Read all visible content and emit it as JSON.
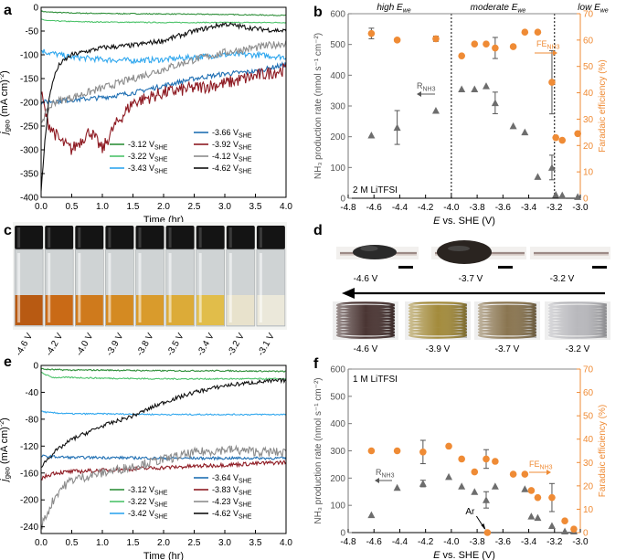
{
  "panel_labels": {
    "a": "a",
    "b": "b",
    "c": "c",
    "d": "d",
    "e": "e",
    "f": "f"
  },
  "colors": {
    "c312": "#2f8f3a",
    "c322": "#4cc36a",
    "c343": "#30a7ee",
    "c366": "#1f6fb3",
    "c392": "#8e1a22",
    "c412": "#8c8c8c",
    "c462": "#111111",
    "rate": "#6d6d6d",
    "fe": "#ef8b35"
  },
  "chart_data": [
    {
      "id": "a",
      "type": "line",
      "title": "",
      "xlabel": "Time (hr)",
      "ylabel": "j_geo (mA cm^-2)",
      "xlim": [
        0,
        4
      ],
      "ylim": [
        -400,
        0
      ],
      "xticks": [
        "0.0",
        "0.5",
        "1.0",
        "1.5",
        "2.0",
        "2.5",
        "3.0",
        "3.5",
        "4.0"
      ],
      "yticks": [
        "-400",
        "-350",
        "-300",
        "-250",
        "-200",
        "-150",
        "-100",
        "-50",
        "0"
      ],
      "legend": [
        {
          "main": "-3.12 V",
          "sub": "SHE",
          "key": "c312"
        },
        {
          "main": "-3.22 V",
          "sub": "SHE",
          "key": "c322"
        },
        {
          "main": "-3.43 V",
          "sub": "SHE",
          "key": "c343"
        },
        {
          "main": "-3.66 V",
          "sub": "SHE",
          "key": "c366"
        },
        {
          "main": "-3.92 V",
          "sub": "SHE",
          "key": "c392"
        },
        {
          "main": "-4.12 V",
          "sub": "SHE",
          "key": "c412"
        },
        {
          "main": "-4.62 V",
          "sub": "SHE",
          "key": "c462"
        }
      ],
      "series": [
        {
          "name": "-3.12 V",
          "key": "c312",
          "noise": 1,
          "x": [
            0,
            0.1,
            0.5,
            1,
            2,
            3,
            4
          ],
          "y": [
            -8,
            -10,
            -12,
            -13,
            -14,
            -15,
            -17
          ]
        },
        {
          "name": "-3.22 V",
          "key": "c322",
          "noise": 1,
          "x": [
            0,
            0.1,
            0.5,
            1,
            2,
            3,
            4
          ],
          "y": [
            -25,
            -28,
            -30,
            -31,
            -32,
            -32,
            -32
          ]
        },
        {
          "name": "-3.43 V",
          "key": "c343",
          "noise": 6,
          "x": [
            0,
            0.1,
            0.5,
            1,
            1.5,
            2,
            2.5,
            3,
            3.5,
            4
          ],
          "y": [
            -90,
            -95,
            -105,
            -110,
            -112,
            -110,
            -105,
            -100,
            -100,
            -105
          ]
        },
        {
          "name": "-3.66 V",
          "key": "c366",
          "noise": 5,
          "x": [
            0,
            0.5,
            1,
            1.5,
            2,
            2.5,
            3,
            3.5,
            4
          ],
          "y": [
            -200,
            -195,
            -190,
            -180,
            -165,
            -150,
            -140,
            -135,
            -120
          ]
        },
        {
          "name": "-3.92 V",
          "key": "c392",
          "noise": 14,
          "x": [
            0,
            0.1,
            0.3,
            0.5,
            0.8,
            1.0,
            1.2,
            1.5,
            2.0,
            2.5,
            3.0,
            3.5,
            4.0
          ],
          "y": [
            -180,
            -240,
            -280,
            -300,
            -260,
            -300,
            -250,
            -200,
            -180,
            -170,
            -160,
            -145,
            -130
          ]
        },
        {
          "name": "-4.12 V",
          "key": "c412",
          "noise": 8,
          "x": [
            0,
            0.2,
            0.5,
            1,
            1.5,
            2,
            2.5,
            3,
            3.5,
            4
          ],
          "y": [
            -240,
            -200,
            -190,
            -170,
            -150,
            -130,
            -110,
            -95,
            -85,
            -75
          ]
        },
        {
          "name": "-4.62 V",
          "key": "c462",
          "noise": 5,
          "x": [
            0,
            0.05,
            0.12,
            0.2,
            0.3,
            0.5,
            1,
            1.5,
            2,
            2.5,
            3,
            3.5,
            4
          ],
          "y": [
            -390,
            -300,
            -200,
            -150,
            -120,
            -100,
            -85,
            -80,
            -70,
            -50,
            -35,
            -45,
            -50
          ]
        }
      ]
    },
    {
      "id": "b",
      "type": "scatter",
      "xlabel": "E vs. SHE (V)",
      "ylabel": "NH3 production rate (nmol s^-1 cm^-2)",
      "y2label": "Faradaic efficiency (%)",
      "xlim": [
        -4.8,
        -3.0
      ],
      "ylim": [
        0,
        600
      ],
      "y2lim": [
        0,
        70
      ],
      "xticks": [
        "-4.8",
        "-4.6",
        "-4.4",
        "-4.2",
        "-4.0",
        "-3.8",
        "-3.6",
        "-3.4",
        "-3.2",
        "-3.0"
      ],
      "yticks": [
        "0",
        "100",
        "200",
        "300",
        "400",
        "500",
        "600"
      ],
      "y2ticks": [
        "0",
        "10",
        "20",
        "30",
        "40",
        "50",
        "60",
        "70"
      ],
      "vlines": [
        -4.0,
        -3.2
      ],
      "regions": {
        "high": "high ",
        "moderate": "moderate ",
        "low": "low ",
        "E": "E",
        "we": "we"
      },
      "electrolyte": "2 M LiTFSI",
      "rate_label": {
        "R": "R",
        "sub": "NH3"
      },
      "fe_label": {
        "FE": "FE",
        "sub": "NH3"
      },
      "rate": [
        {
          "x": -4.62,
          "y": 205
        },
        {
          "x": -4.42,
          "y": 230,
          "err": 55
        },
        {
          "x": -4.12,
          "y": 285
        },
        {
          "x": -3.92,
          "y": 355
        },
        {
          "x": -3.82,
          "y": 355
        },
        {
          "x": -3.73,
          "y": 365
        },
        {
          "x": -3.66,
          "y": 310,
          "err": 35
        },
        {
          "x": -3.52,
          "y": 235
        },
        {
          "x": -3.43,
          "y": 215
        },
        {
          "x": -3.33,
          "y": 70
        },
        {
          "x": -3.22,
          "y": 100,
          "err": 40
        },
        {
          "x": -3.19,
          "y": 12
        },
        {
          "x": -3.14,
          "y": 10
        },
        {
          "x": -3.02,
          "y": 5
        }
      ],
      "fe": [
        {
          "x": -4.62,
          "y": 62.5,
          "err": 2
        },
        {
          "x": -4.42,
          "y": 60
        },
        {
          "x": -4.12,
          "y": 60.5,
          "err": 1
        },
        {
          "x": -3.92,
          "y": 54
        },
        {
          "x": -3.82,
          "y": 58.5
        },
        {
          "x": -3.73,
          "y": 58.5
        },
        {
          "x": -3.66,
          "y": 57,
          "err": 4
        },
        {
          "x": -3.52,
          "y": 57.5
        },
        {
          "x": -3.43,
          "y": 63
        },
        {
          "x": -3.33,
          "y": 63
        },
        {
          "x": -3.22,
          "y": 44,
          "err": 12
        },
        {
          "x": -3.19,
          "y": 23
        },
        {
          "x": -3.14,
          "y": 22
        },
        {
          "x": -3.02,
          "y": 24.5
        }
      ]
    },
    {
      "id": "e",
      "type": "line",
      "xlabel": "Time (hr)",
      "ylabel": "j_geo (mA cm^-2)",
      "xlim": [
        0,
        4
      ],
      "ylim": [
        -250,
        0
      ],
      "xticks": [
        "0.0",
        "0.5",
        "1.0",
        "1.5",
        "2.0",
        "2.5",
        "3.0",
        "3.5",
        "4.0"
      ],
      "yticks": [
        "-240",
        "-200",
        "-160",
        "-120",
        "-80",
        "-40",
        "0"
      ],
      "legend": [
        {
          "main": "-3.12 V",
          "sub": "SHE",
          "key": "c312"
        },
        {
          "main": "-3.22 V",
          "sub": "SHE",
          "key": "c322"
        },
        {
          "main": "-3.42 V",
          "sub": "SHE",
          "key": "c343"
        },
        {
          "main": "-3.64 V",
          "sub": "SHE",
          "key": "c366"
        },
        {
          "main": "-3.83 V",
          "sub": "SHE",
          "key": "c392"
        },
        {
          "main": "-4.23 V",
          "sub": "SHE",
          "key": "c412"
        },
        {
          "main": "-4.62 V",
          "sub": "SHE",
          "key": "c462"
        }
      ],
      "series": [
        {
          "name": "-3.12 V",
          "key": "c312",
          "noise": 1,
          "x": [
            0,
            0.1,
            0.5,
            1,
            2,
            3,
            4
          ],
          "y": [
            -5,
            -6,
            -7,
            -7,
            -8,
            -8,
            -9
          ]
        },
        {
          "name": "-3.22 V",
          "key": "c322",
          "noise": 1,
          "x": [
            0,
            0.1,
            0.2,
            0.5,
            1,
            2,
            3,
            4
          ],
          "y": [
            -10,
            -15,
            -18,
            -18,
            -19,
            -20,
            -20,
            -20
          ]
        },
        {
          "name": "-3.42 V",
          "key": "c343",
          "noise": 1,
          "x": [
            0,
            0.1,
            0.5,
            1,
            2,
            3,
            4
          ],
          "y": [
            -68,
            -70,
            -72,
            -72,
            -73,
            -73,
            -73
          ]
        },
        {
          "name": "-3.64 V",
          "key": "c366",
          "noise": 2,
          "x": [
            0,
            0.5,
            1,
            2,
            3,
            4
          ],
          "y": [
            -135,
            -137,
            -137,
            -138,
            -138,
            -138
          ]
        },
        {
          "name": "-3.83 V",
          "key": "c392",
          "noise": 3,
          "x": [
            0,
            0.2,
            0.5,
            1,
            2,
            3,
            4
          ],
          "y": [
            -168,
            -160,
            -158,
            -156,
            -152,
            -148,
            -144
          ]
        },
        {
          "name": "-4.23 V",
          "key": "c412",
          "noise": 7,
          "x": [
            0,
            0.1,
            0.2,
            0.3,
            0.5,
            1,
            1.5,
            2,
            2.5,
            3,
            3.5,
            4
          ],
          "y": [
            -240,
            -220,
            -200,
            -185,
            -170,
            -160,
            -150,
            -140,
            -130,
            -125,
            -128,
            -130
          ]
        },
        {
          "name": "-4.62 V",
          "key": "c462",
          "noise": 3,
          "x": [
            0,
            0.2,
            0.5,
            1,
            1.5,
            2,
            2.5,
            3,
            3.5,
            4
          ],
          "y": [
            -150,
            -130,
            -110,
            -90,
            -75,
            -55,
            -40,
            -30,
            -25,
            -22
          ]
        }
      ]
    },
    {
      "id": "f",
      "type": "scatter",
      "xlabel": "E vs. SHE (V)",
      "ylabel": "NH3 production rate (nmol s^-1 cm^-2)",
      "y2label": "Faradaic efficiency (%)",
      "xlim": [
        -4.8,
        -3.0
      ],
      "ylim": [
        0,
        600
      ],
      "y2lim": [
        0,
        70
      ],
      "xticks": [
        "-4.8",
        "-4.6",
        "-4.4",
        "-4.2",
        "-4.0",
        "-3.8",
        "-3.6",
        "-3.4",
        "-3.2",
        "-3.0"
      ],
      "yticks": [
        "0",
        "100",
        "200",
        "300",
        "400",
        "500",
        "600"
      ],
      "y2ticks": [
        "0",
        "10",
        "20",
        "30",
        "40",
        "50",
        "60",
        "70"
      ],
      "electrolyte": "1 M LiTFSI",
      "rate_label": {
        "R": "R",
        "sub": "NH3"
      },
      "fe_label": {
        "FE": "FE",
        "sub": "NH3"
      },
      "ar_label": "Ar",
      "rate": [
        {
          "x": -4.62,
          "y": 65
        },
        {
          "x": -4.42,
          "y": 165
        },
        {
          "x": -4.22,
          "y": 180,
          "err": 12
        },
        {
          "x": -4.02,
          "y": 205
        },
        {
          "x": -3.92,
          "y": 170
        },
        {
          "x": -3.82,
          "y": 150
        },
        {
          "x": -3.73,
          "y": 120,
          "err": 30
        },
        {
          "x": -3.66,
          "y": 170
        },
        {
          "x": -3.43,
          "y": 160
        },
        {
          "x": -3.38,
          "y": 60
        },
        {
          "x": -3.33,
          "y": 55
        },
        {
          "x": -3.22,
          "y": 25
        },
        {
          "x": -3.12,
          "y": 5
        },
        {
          "x": -3.05,
          "y": 5
        }
      ],
      "fe": [
        {
          "x": -4.62,
          "y": 35
        },
        {
          "x": -4.42,
          "y": 35
        },
        {
          "x": -4.22,
          "y": 34.5,
          "err": 5
        },
        {
          "x": -4.02,
          "y": 37
        },
        {
          "x": -3.92,
          "y": 31.5
        },
        {
          "x": -3.82,
          "y": 26
        },
        {
          "x": -3.73,
          "y": 31.5,
          "err": 4
        },
        {
          "x": -3.66,
          "y": 30.5
        },
        {
          "x": -3.52,
          "y": 25
        },
        {
          "x": -3.43,
          "y": 25
        },
        {
          "x": -3.38,
          "y": 18
        },
        {
          "x": -3.33,
          "y": 15
        },
        {
          "x": -3.22,
          "y": 15,
          "err": 6
        },
        {
          "x": -3.12,
          "y": 5
        },
        {
          "x": -3.05,
          "y": 1.5
        }
      ],
      "ar_point": {
        "x": -3.72,
        "y": 0
      }
    }
  ],
  "panel_c": {
    "vial_labels": [
      "-4.6 V",
      "-4.2 V",
      "-4.0 V",
      "-3.9 V",
      "-3.8 V",
      "-3.5 V",
      "-3.4 V",
      "-3.2 V",
      "-3.1 V"
    ],
    "liquid_colors": [
      "#b85a12",
      "#c96a16",
      "#cf7a1c",
      "#d48a22",
      "#d99b2c",
      "#dcab38",
      "#e1bd4a",
      "#e8e2cc",
      "#ebe8da"
    ]
  },
  "panel_d": {
    "top_labels": [
      "-4.6 V",
      "-3.7 V",
      "-3.2 V"
    ],
    "bottom_labels": [
      "-4.6 V",
      "-3.9 V",
      "-3.7 V",
      "-3.2 V"
    ],
    "coil_colors": [
      "#4a3533",
      "#a38b3c",
      "#8a7550",
      "#b8b8bc"
    ]
  }
}
